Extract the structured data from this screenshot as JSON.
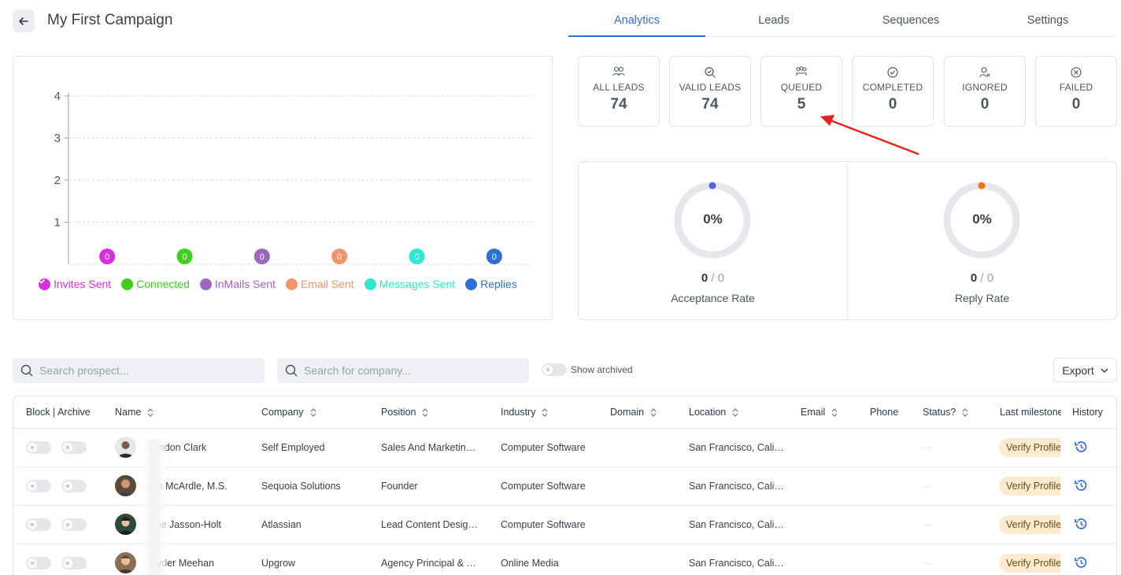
{
  "header": {
    "title": "My First Campaign",
    "tabs": [
      {
        "label": "Analytics",
        "active": true
      },
      {
        "label": "Leads",
        "active": false
      },
      {
        "label": "Sequences",
        "active": false
      },
      {
        "label": "Settings",
        "active": false
      }
    ]
  },
  "chart_data": {
    "type": "bar",
    "categories": [
      "Invites Sent",
      "Connected",
      "InMails Sent",
      "Email Sent",
      "Messages Sent",
      "Replies"
    ],
    "values": [
      0,
      0,
      0,
      0,
      0,
      0
    ],
    "colors": [
      "#d62ee0",
      "#3ccf1c",
      "#9b66c2",
      "#f0956a",
      "#2ee8cf",
      "#2f6fd6"
    ],
    "ylim": [
      0,
      4
    ],
    "yticks": [
      "1",
      "2",
      "3",
      "4"
    ],
    "grid": true,
    "legend_position": "bottom",
    "legend": [
      "Invites Sent",
      "Connected",
      "InMails Sent",
      "Email Sent",
      "Messages Sent",
      "Replies"
    ]
  },
  "stats": [
    {
      "label": "ALL LEADS",
      "value": "74",
      "icon": "users-icon"
    },
    {
      "label": "VALID LEADS",
      "value": "74",
      "icon": "search-check-icon"
    },
    {
      "label": "QUEUED",
      "value": "5",
      "icon": "queue-icon"
    },
    {
      "label": "COMPLETED",
      "value": "0",
      "icon": "check-circle-icon"
    },
    {
      "label": "IGNORED",
      "value": "0",
      "icon": "user-x-icon"
    },
    {
      "label": "FAILED",
      "value": "0",
      "icon": "x-circle-icon"
    }
  ],
  "rates": [
    {
      "pct": "0%",
      "num": "0",
      "den": "/ 0",
      "label": "Acceptance Rate",
      "dot_color": "#4f63e6"
    },
    {
      "pct": "0%",
      "num": "0",
      "den": "/ 0",
      "label": "Reply Rate",
      "dot_color": "#f27416"
    }
  ],
  "filters": {
    "search_prospect_placeholder": "Search prospect...",
    "search_company_placeholder": "Search for company...",
    "show_archived_label": "Show archived",
    "export_label": "Export"
  },
  "table": {
    "columns": [
      "Block | Archive",
      "Name",
      "Company",
      "Position",
      "Industry",
      "Domain",
      "Location",
      "Email",
      "Phone",
      "Status?",
      "Last milestone",
      "History"
    ],
    "rows": [
      {
        "name": "B      ndon Clark",
        "company": "Self Employed",
        "position": "Sales And Marketin…",
        "industry": "Computer Software",
        "location": "San Francisco, Cali…",
        "milestone": "Verify Profile"
      },
      {
        "name": "J     n McArdle, M.S.",
        "company": "Sequoia Solutions",
        "position": "Founder",
        "industry": "Computer Software",
        "location": "San Francisco, Cali…",
        "milestone": "Verify Profile"
      },
      {
        "name": "S      ie Jasson-Holt",
        "company": "Atlassian",
        "position": "Lead Content Desig…",
        "industry": "Computer Software",
        "location": "San Francisco, Cali…",
        "milestone": "Verify Profile"
      },
      {
        "name": "Ryder Meehan",
        "company": "Upgrow",
        "position": "Agency Principal & …",
        "industry": "Online Media",
        "location": "San Francisco, Cali…",
        "milestone": "Verify Profile"
      }
    ]
  }
}
